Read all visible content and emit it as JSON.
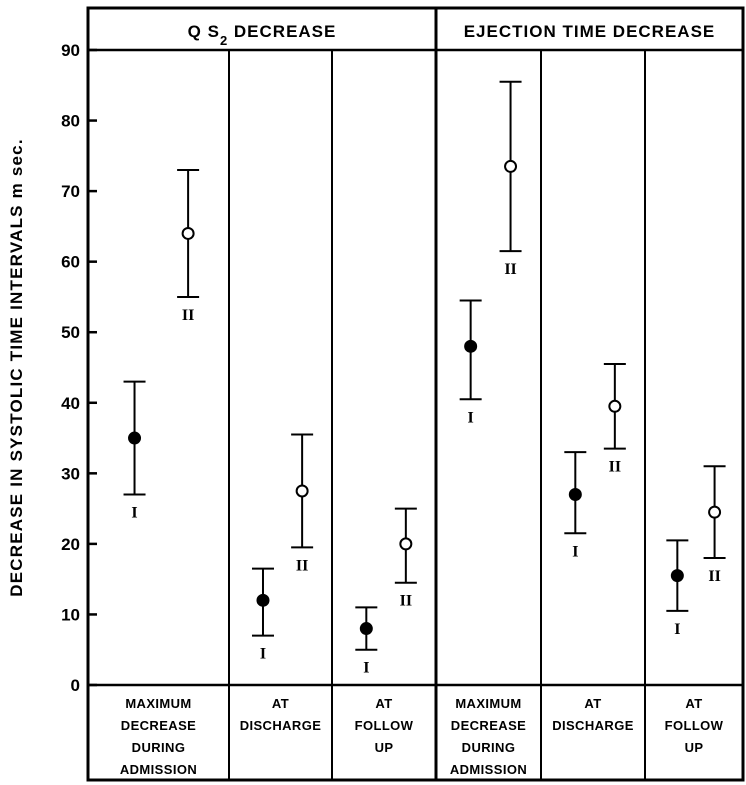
{
  "chart_data": {
    "type": "scatter",
    "ylabel": "DECREASE IN SYSTOLIC TIME INTERVALS",
    "yunit": "m sec.",
    "ylim": [
      0,
      90
    ],
    "yticks": [
      0,
      10,
      20,
      30,
      40,
      50,
      60,
      70,
      80,
      90
    ],
    "grid": false,
    "group_labels": [
      "I",
      "II"
    ],
    "panels": [
      {
        "title_parts": [
          "Q S",
          "2",
          " DECREASE"
        ],
        "categories": [
          {
            "label_lines": [
              "MAXIMUM",
              "DECREASE",
              "DURING",
              "ADMISSION"
            ],
            "points": [
              {
                "group": "I",
                "mean": 35,
                "low": 27,
                "high": 43
              },
              {
                "group": "II",
                "mean": 64,
                "low": 55,
                "high": 73
              }
            ]
          },
          {
            "label_lines": [
              "AT",
              "DISCHARGE"
            ],
            "points": [
              {
                "group": "I",
                "mean": 12,
                "low": 7,
                "high": 16.5
              },
              {
                "group": "II",
                "mean": 27.5,
                "low": 19.5,
                "high": 35.5
              }
            ]
          },
          {
            "label_lines": [
              "AT",
              "FOLLOW",
              "UP"
            ],
            "points": [
              {
                "group": "I",
                "mean": 8,
                "low": 5,
                "high": 11
              },
              {
                "group": "II",
                "mean": 20,
                "low": 14.5,
                "high": 25
              }
            ]
          }
        ]
      },
      {
        "title_parts": [
          "EJECTION TIME DECREASE"
        ],
        "categories": [
          {
            "label_lines": [
              "MAXIMUM",
              "DECREASE",
              "DURING",
              "ADMISSION"
            ],
            "points": [
              {
                "group": "I",
                "mean": 48,
                "low": 40.5,
                "high": 54.5
              },
              {
                "group": "II",
                "mean": 73.5,
                "low": 61.5,
                "high": 85.5
              }
            ]
          },
          {
            "label_lines": [
              "AT",
              "DISCHARGE"
            ],
            "points": [
              {
                "group": "I",
                "mean": 27,
                "low": 21.5,
                "high": 33
              },
              {
                "group": "II",
                "mean": 39.5,
                "low": 33.5,
                "high": 45.5
              }
            ]
          },
          {
            "label_lines": [
              "AT",
              "FOLLOW",
              "UP"
            ],
            "points": [
              {
                "group": "I",
                "mean": 15.5,
                "low": 10.5,
                "high": 20.5
              },
              {
                "group": "II",
                "mean": 24.5,
                "low": 18,
                "high": 31
              }
            ]
          }
        ]
      }
    ]
  }
}
